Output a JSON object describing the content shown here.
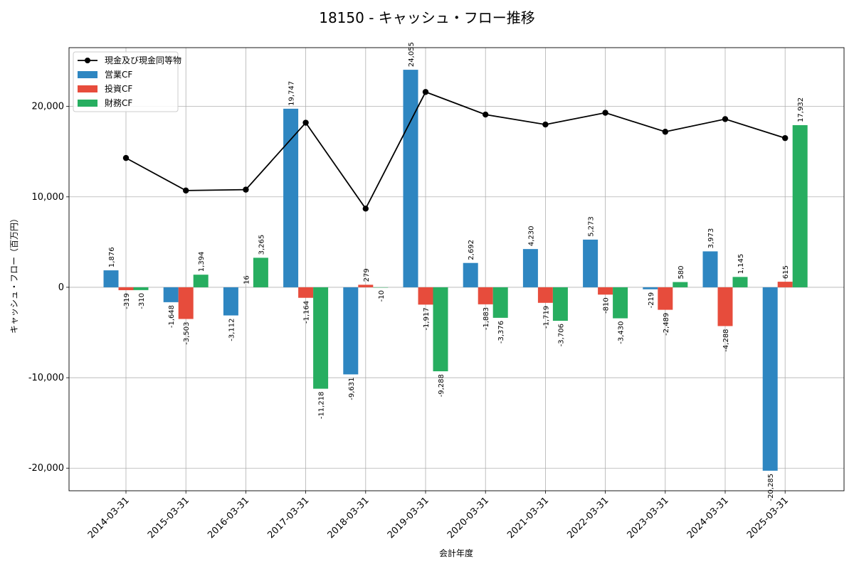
{
  "chart_data": {
    "type": "bar",
    "title": "18150 - キャッシュ・フロー推移",
    "xlabel": "会計年度",
    "ylabel": "キャッシュ・フロー（百万円）",
    "ylim": [
      -22500,
      26500
    ],
    "yticks": [
      -20000,
      -10000,
      0,
      10000,
      20000
    ],
    "ytick_labels": [
      "-20,000",
      "-10,000",
      "0",
      "10,000",
      "20,000"
    ],
    "grid": true,
    "legend_position": "top-left",
    "categories": [
      "2014-03-31",
      "2015-03-31",
      "2016-03-31",
      "2017-03-31",
      "2018-03-31",
      "2019-03-31",
      "2020-03-31",
      "2021-03-31",
      "2022-03-31",
      "2023-03-31",
      "2024-03-31",
      "2025-03-31"
    ],
    "series": [
      {
        "name": "営業CF",
        "color": "#2E86C1",
        "values": [
          1876,
          -1648,
          -3112,
          19747,
          -9631,
          24055,
          2692,
          4230,
          5273,
          -219,
          3973,
          -20285
        ],
        "labels": [
          "1,876",
          "-1,648",
          "-3,112",
          "19,747",
          "-9,631",
          "24,055",
          "2,692",
          "4,230",
          "5,273",
          "-219",
          "3,973",
          "-20,285"
        ]
      },
      {
        "name": "投資CF",
        "color": "#E74C3C",
        "values": [
          -319,
          -3503,
          null,
          -1164,
          279,
          -1917,
          -1883,
          -1719,
          -810,
          -2489,
          -4288,
          615
        ],
        "labels": [
          "-319",
          "-3,503",
          "",
          "-1,164",
          "279",
          "-1,917",
          "-1,883",
          "-1,719",
          "-810",
          "-2,489",
          "-4,288",
          "615"
        ]
      },
      {
        "name": "財務CF",
        "color": "#27AE60",
        "values": [
          -310,
          1394,
          3265,
          -11218,
          -10,
          -9288,
          -3376,
          -3706,
          -3430,
          580,
          1145,
          17932
        ],
        "labels": [
          "-310",
          "1,394",
          "3,265",
          "-11,218",
          "-10",
          "-9,288",
          "-3,376",
          "-3,706",
          "-3,430",
          "580",
          "1,145",
          "17,932"
        ]
      }
    ],
    "extra_labels": [
      {
        "category_index": 2,
        "series_index": 1,
        "text": "16"
      }
    ],
    "line_series": {
      "name": "現金及び現金同等物",
      "color": "#000000",
      "values": [
        14300,
        10700,
        10800,
        18200,
        8700,
        21600,
        19100,
        18000,
        19300,
        17200,
        18600,
        16500
      ]
    }
  }
}
